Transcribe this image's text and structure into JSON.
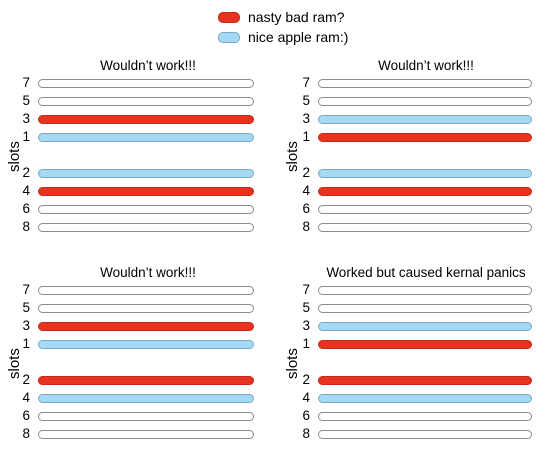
{
  "legend": {
    "items": [
      {
        "label": "nasty bad ram?",
        "color": "#e8321f",
        "kind": "bad"
      },
      {
        "label": "nice apple ram:)",
        "color": "#a6daf4",
        "kind": "nice"
      }
    ]
  },
  "panels": [
    {
      "title": "Wouldn’t work!!!",
      "axis_label": "slots",
      "slots": [
        {
          "num": "7",
          "state": "empty"
        },
        {
          "num": "5",
          "state": "empty"
        },
        {
          "num": "3",
          "state": "bad"
        },
        {
          "num": "1",
          "state": "nice"
        },
        {
          "num": "2",
          "state": "nice"
        },
        {
          "num": "4",
          "state": "bad"
        },
        {
          "num": "6",
          "state": "empty"
        },
        {
          "num": "8",
          "state": "empty"
        }
      ]
    },
    {
      "title": "Wouldn’t work!!!",
      "axis_label": "slots",
      "slots": [
        {
          "num": "7",
          "state": "empty"
        },
        {
          "num": "5",
          "state": "empty"
        },
        {
          "num": "3",
          "state": "nice"
        },
        {
          "num": "1",
          "state": "bad"
        },
        {
          "num": "2",
          "state": "nice"
        },
        {
          "num": "4",
          "state": "bad"
        },
        {
          "num": "6",
          "state": "empty"
        },
        {
          "num": "8",
          "state": "empty"
        }
      ]
    },
    {
      "title": "Wouldn’t work!!!",
      "axis_label": "slots",
      "slots": [
        {
          "num": "7",
          "state": "empty"
        },
        {
          "num": "5",
          "state": "empty"
        },
        {
          "num": "3",
          "state": "bad"
        },
        {
          "num": "1",
          "state": "nice"
        },
        {
          "num": "2",
          "state": "bad"
        },
        {
          "num": "4",
          "state": "nice"
        },
        {
          "num": "6",
          "state": "empty"
        },
        {
          "num": "8",
          "state": "empty"
        }
      ]
    },
    {
      "title": "Worked but caused kernal panics",
      "axis_label": "slots",
      "slots": [
        {
          "num": "7",
          "state": "empty"
        },
        {
          "num": "5",
          "state": "empty"
        },
        {
          "num": "3",
          "state": "nice"
        },
        {
          "num": "1",
          "state": "bad"
        },
        {
          "num": "2",
          "state": "bad"
        },
        {
          "num": "4",
          "state": "nice"
        },
        {
          "num": "6",
          "state": "empty"
        },
        {
          "num": "8",
          "state": "empty"
        }
      ]
    }
  ]
}
